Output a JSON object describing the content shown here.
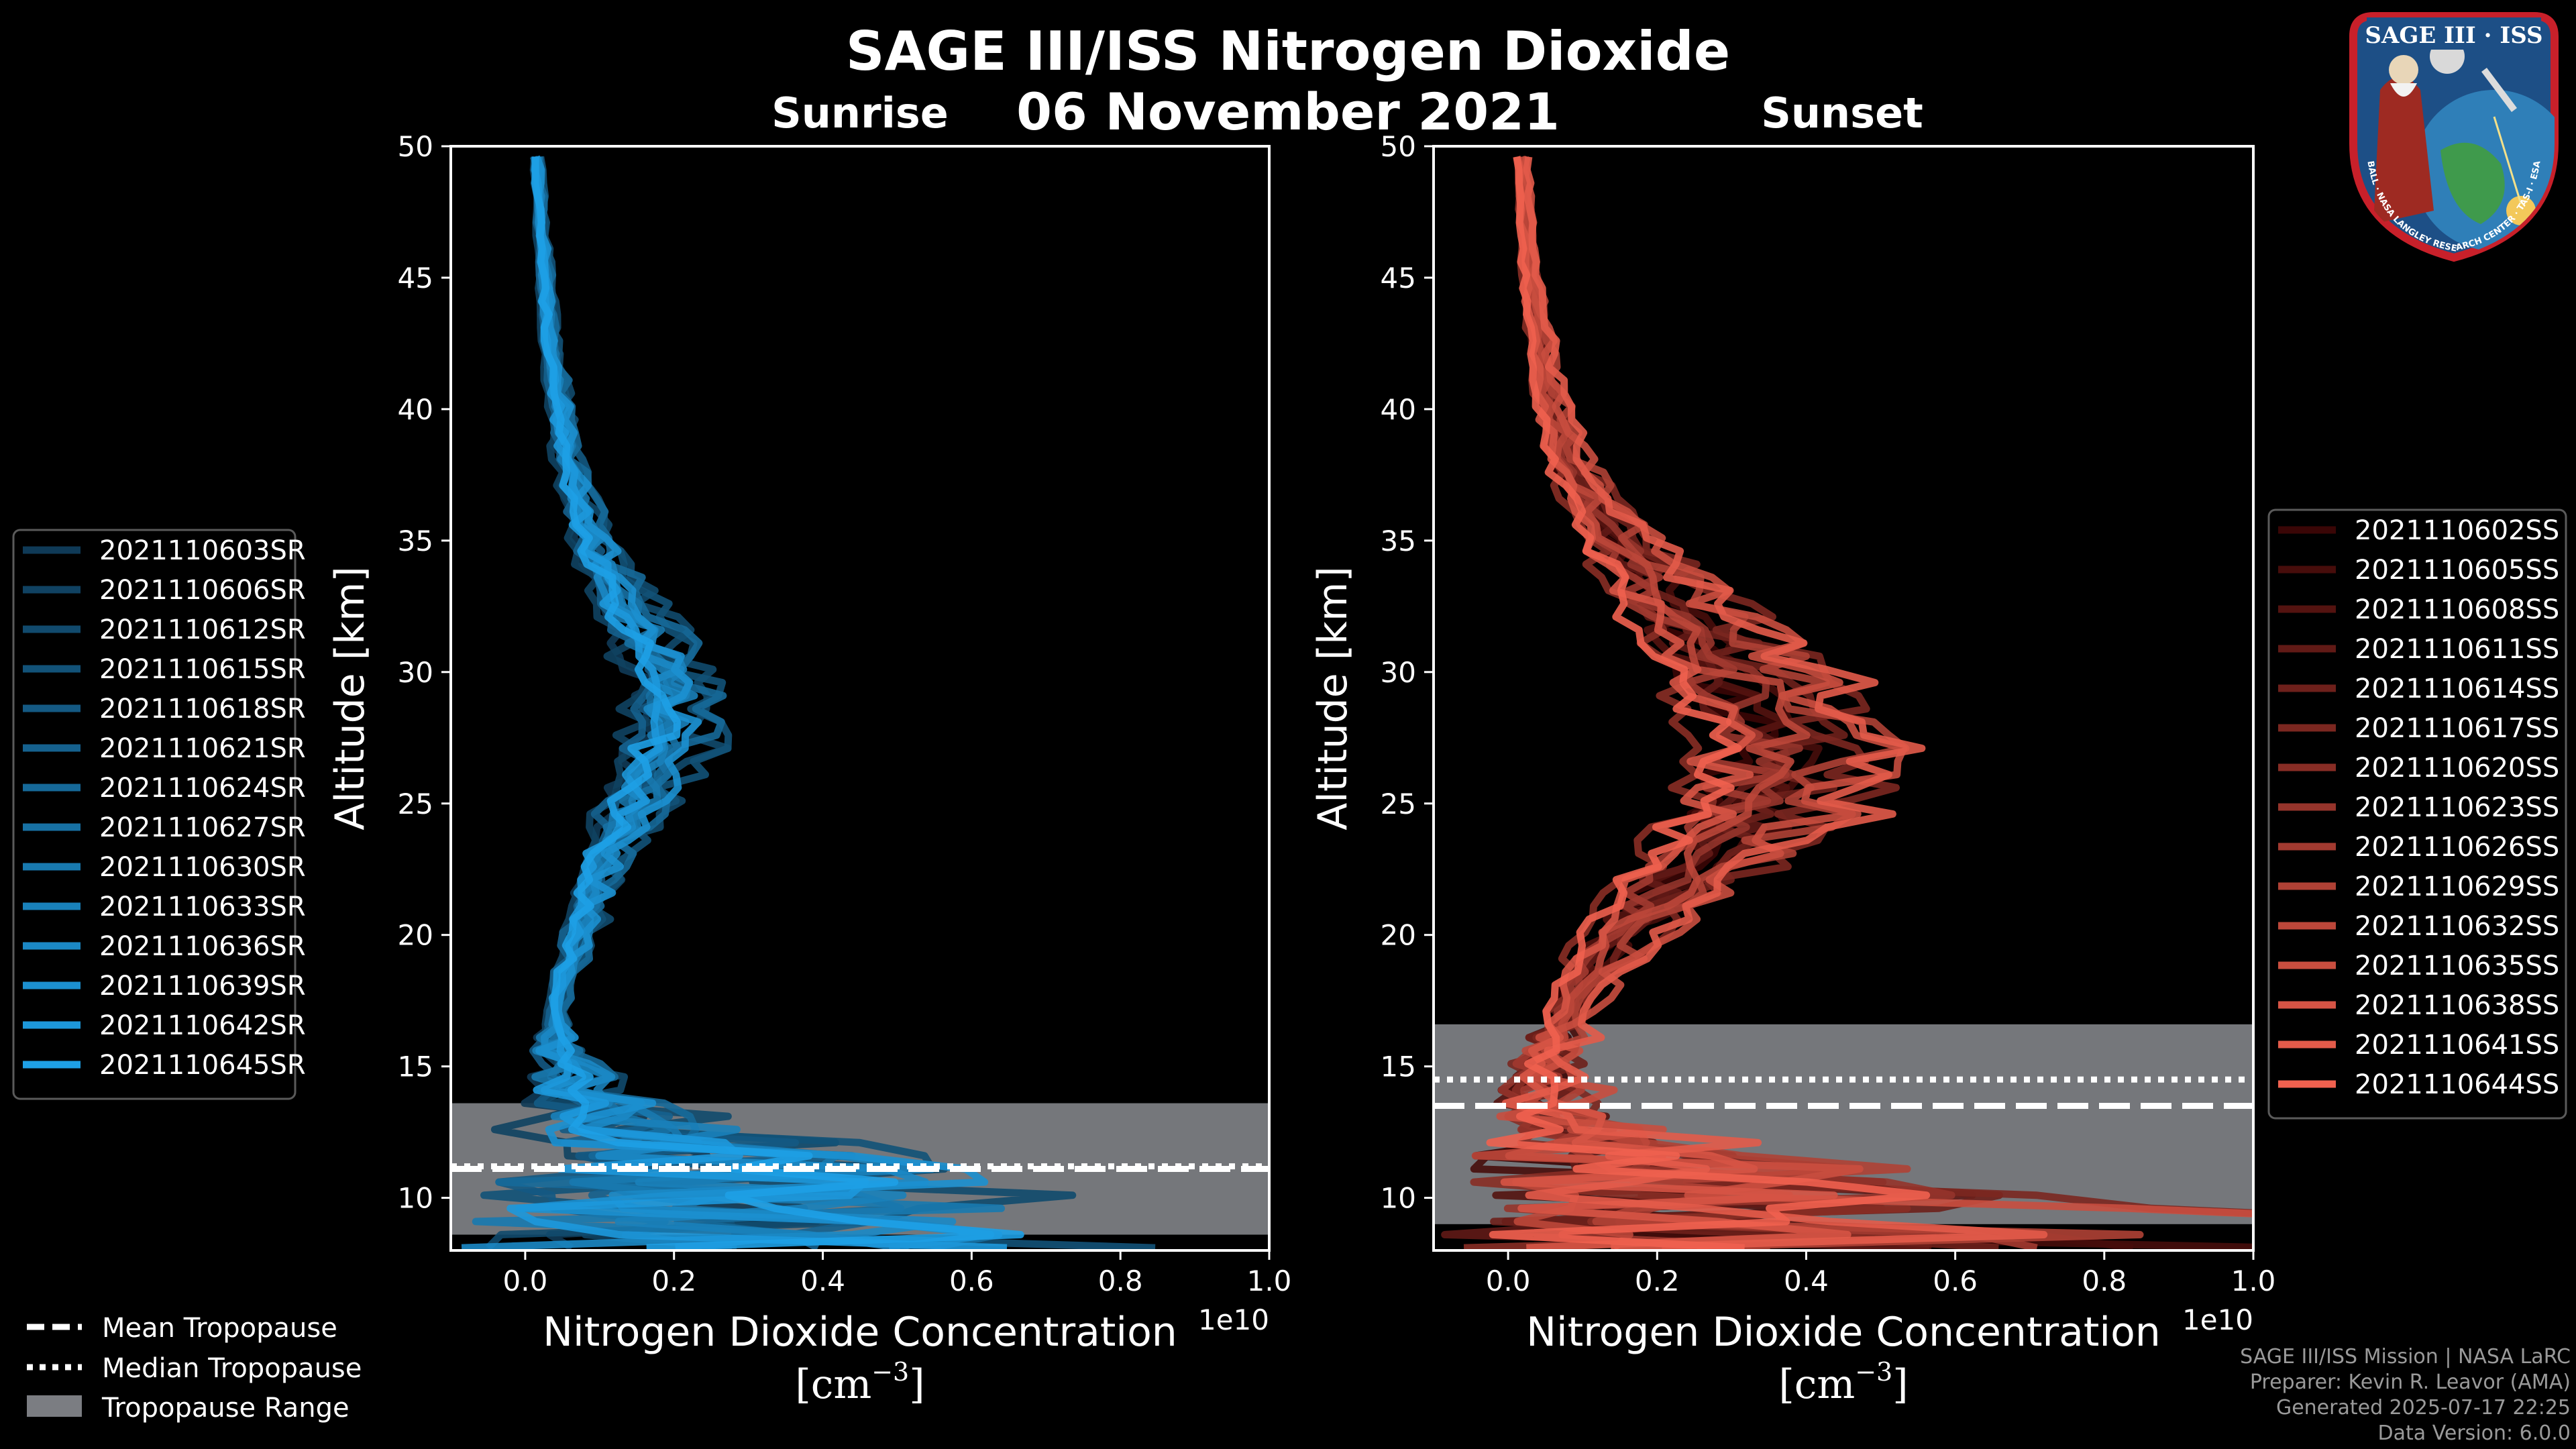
{
  "header": {
    "title": "SAGE III/ISS Nitrogen Dioxide",
    "date": "06 November 2021",
    "left_panel_label": "Sunrise",
    "right_panel_label": "Sunset"
  },
  "footer": {
    "line1": "SAGE III/ISS Mission | NASA LaRC",
    "line2": "Preparer: Kevin R. Leavor (AMA)",
    "line3": "Generated 2025-07-17 22:25",
    "line4": "Data Version: 6.0.0"
  },
  "logo": {
    "title": "SAGE III · ISS",
    "ring_text": "BALL · NASA LANGLEY RESEARCH CENTER · TAS-I · ESA"
  },
  "bottom_legend": {
    "mean": "Mean Tropopause",
    "median": "Median Tropopause",
    "range": "Tropopause Range"
  },
  "colors": {
    "background": "#000000",
    "sunrise_dark": "#0f3a57",
    "sunrise_light": "#1ea0e6",
    "sunset_dark": "#3a0606",
    "sunset_light": "#f0614f",
    "tropopause_fill": "#7b7d82"
  },
  "chart_data": [
    {
      "type": "line",
      "title": "Sunrise",
      "xlabel": "Nitrogen Dioxide Concentration",
      "xlabel_unit": "[cm",
      "xlabel_exp": "−3",
      "xlabel_close": "]",
      "ylabel": "Altitude [km]",
      "offset_text": "1e10",
      "xlim": [
        -0.1,
        1.0
      ],
      "ylim": [
        8,
        50
      ],
      "xticks": [
        0.0,
        0.2,
        0.4,
        0.6,
        0.8,
        1.0
      ],
      "xtick_labels": [
        "0.0",
        "0.2",
        "0.4",
        "0.6",
        "0.8",
        "1.0"
      ],
      "yticks": [
        10,
        15,
        20,
        25,
        30,
        35,
        40,
        45,
        50
      ],
      "ytick_labels": [
        "10",
        "15",
        "20",
        "25",
        "30",
        "35",
        "40",
        "45",
        "50"
      ],
      "tropopause": {
        "mean_km": 11.1,
        "median_km": 11.2,
        "range_km": [
          8.6,
          13.6
        ]
      },
      "mean_profile": {
        "alt": [
          8,
          9,
          10,
          11,
          12,
          13,
          14,
          15,
          16,
          17,
          18,
          19,
          20,
          21,
          22,
          23,
          24,
          25,
          26,
          27,
          28,
          29,
          30,
          31,
          32,
          33,
          34,
          35,
          36,
          37,
          38,
          39,
          40,
          41,
          42,
          43,
          44,
          45,
          46,
          47,
          48,
          49,
          50
        ],
        "no2": [
          0.3,
          0.32,
          0.3,
          0.28,
          0.22,
          0.12,
          0.06,
          0.05,
          0.04,
          0.04,
          0.045,
          0.06,
          0.07,
          0.08,
          0.09,
          0.1,
          0.12,
          0.14,
          0.16,
          0.18,
          0.19,
          0.185,
          0.175,
          0.16,
          0.14,
          0.12,
          0.1,
          0.085,
          0.075,
          0.065,
          0.055,
          0.05,
          0.045,
          0.04,
          0.035,
          0.03,
          0.028,
          0.025,
          0.023,
          0.02,
          0.018,
          0.016,
          0.015
        ]
      },
      "series": [
        {
          "name": "2021110603SR"
        },
        {
          "name": "2021110606SR"
        },
        {
          "name": "2021110612SR"
        },
        {
          "name": "2021110615SR"
        },
        {
          "name": "2021110618SR"
        },
        {
          "name": "2021110621SR"
        },
        {
          "name": "2021110624SR"
        },
        {
          "name": "2021110627SR"
        },
        {
          "name": "2021110630SR"
        },
        {
          "name": "2021110633SR"
        },
        {
          "name": "2021110636SR"
        },
        {
          "name": "2021110639SR"
        },
        {
          "name": "2021110642SR"
        },
        {
          "name": "2021110645SR"
        }
      ]
    },
    {
      "type": "line",
      "title": "Sunset",
      "xlabel": "Nitrogen Dioxide Concentration",
      "xlabel_unit": "[cm",
      "xlabel_exp": "−3",
      "xlabel_close": "]",
      "ylabel": "Altitude [km]",
      "offset_text": "1e10",
      "xlim": [
        -0.1,
        1.0
      ],
      "ylim": [
        8,
        50
      ],
      "xticks": [
        0.0,
        0.2,
        0.4,
        0.6,
        0.8,
        1.0
      ],
      "xtick_labels": [
        "0.0",
        "0.2",
        "0.4",
        "0.6",
        "0.8",
        "1.0"
      ],
      "yticks": [
        10,
        15,
        20,
        25,
        30,
        35,
        40,
        45,
        50
      ],
      "ytick_labels": [
        "10",
        "15",
        "20",
        "25",
        "30",
        "35",
        "40",
        "45",
        "50"
      ],
      "tropopause": {
        "mean_km": 13.5,
        "median_km": 14.5,
        "range_km": [
          9.0,
          16.6
        ]
      },
      "mean_profile": {
        "alt": [
          8,
          9,
          10,
          11,
          12,
          13,
          14,
          15,
          16,
          17,
          18,
          19,
          20,
          21,
          22,
          23,
          24,
          25,
          26,
          27,
          28,
          29,
          30,
          31,
          32,
          33,
          34,
          35,
          36,
          37,
          38,
          39,
          40,
          41,
          42,
          43,
          44,
          45,
          46,
          47,
          48,
          49,
          50
        ],
        "no2": [
          0.45,
          0.5,
          0.4,
          0.25,
          0.12,
          0.07,
          0.05,
          0.05,
          0.06,
          0.08,
          0.1,
          0.12,
          0.15,
          0.19,
          0.23,
          0.27,
          0.31,
          0.34,
          0.36,
          0.37,
          0.36,
          0.33,
          0.3,
          0.27,
          0.24,
          0.21,
          0.18,
          0.15,
          0.12,
          0.1,
          0.08,
          0.07,
          0.06,
          0.05,
          0.045,
          0.04,
          0.035,
          0.03,
          0.027,
          0.024,
          0.021,
          0.019,
          0.017
        ]
      },
      "series": [
        {
          "name": "2021110602SS"
        },
        {
          "name": "2021110605SS"
        },
        {
          "name": "2021110608SS"
        },
        {
          "name": "2021110611SS"
        },
        {
          "name": "2021110614SS"
        },
        {
          "name": "2021110617SS"
        },
        {
          "name": "2021110620SS"
        },
        {
          "name": "2021110623SS"
        },
        {
          "name": "2021110626SS"
        },
        {
          "name": "2021110629SS"
        },
        {
          "name": "2021110632SS"
        },
        {
          "name": "2021110635SS"
        },
        {
          "name": "2021110638SS"
        },
        {
          "name": "2021110641SS"
        },
        {
          "name": "2021110644SS"
        }
      ]
    }
  ]
}
